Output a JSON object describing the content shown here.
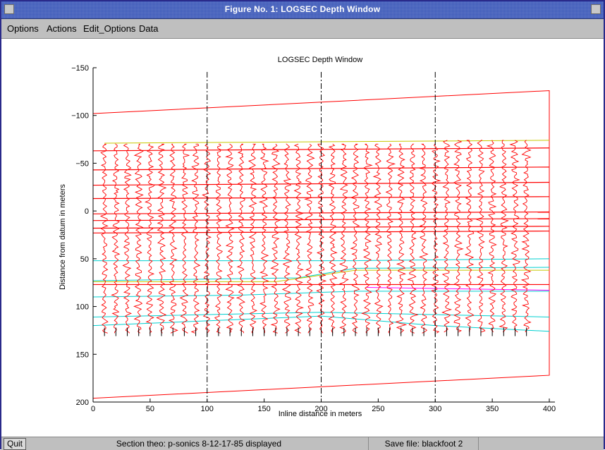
{
  "window": {
    "title": "Figure No. 1: LOGSEC Depth Window"
  },
  "menu": {
    "items": [
      "Options",
      "Actions",
      "Edit_Options",
      "Data"
    ]
  },
  "status": {
    "quit_label": "Quit",
    "section_text": "Section theo: p-sonics 8-12-17-85 displayed",
    "save_text": "Save file: blackfoot  2"
  },
  "colors": {
    "traces": "#ff0000",
    "frame": "#ff0000",
    "horizon_yellow": "#c8c800",
    "horizon_cyan": "#00d0d0",
    "horizon_magenta": "#ff00ff",
    "axes": "#000000"
  },
  "chart_data": {
    "type": "line",
    "title": "LOGSEC Depth Window",
    "xlabel": "Inline distance in meters",
    "ylabel": "Distance from datum in meters",
    "xlim": [
      0,
      400
    ],
    "ylim": [
      200,
      -150
    ],
    "x_ticks": [
      0,
      50,
      100,
      150,
      200,
      250,
      300,
      350,
      400
    ],
    "y_ticks": [
      -150,
      -100,
      -50,
      0,
      50,
      100,
      150,
      200
    ],
    "frame": {
      "top": [
        [
          0,
          -102
        ],
        [
          400,
          -126
        ]
      ],
      "bottom": [
        [
          0,
          196
        ],
        [
          400,
          172
        ]
      ],
      "left_x": 0,
      "right_x": 400
    },
    "well_lines_x": [
      100,
      200,
      300
    ],
    "traces": {
      "x_start": 10,
      "x_end": 380,
      "spacing": 10,
      "top_depth": -70,
      "bottom_depth": 128
    },
    "horizons": [
      {
        "color": "yellow",
        "points": [
          [
            10,
            -71
          ],
          [
            400,
            -74
          ]
        ]
      },
      {
        "color": "red",
        "points": [
          [
            0,
            -63
          ],
          [
            400,
            -66
          ]
        ]
      },
      {
        "color": "red",
        "points": [
          [
            0,
            -43
          ],
          [
            400,
            -46
          ]
        ]
      },
      {
        "color": "red",
        "points": [
          [
            0,
            -27
          ],
          [
            400,
            -30
          ]
        ]
      },
      {
        "color": "red",
        "points": [
          [
            0,
            -13
          ],
          [
            400,
            -15
          ]
        ]
      },
      {
        "color": "red",
        "points": [
          [
            0,
            3
          ],
          [
            400,
            1
          ]
        ]
      },
      {
        "color": "red",
        "points": [
          [
            0,
            10
          ],
          [
            400,
            8
          ]
        ]
      },
      {
        "color": "red",
        "points": [
          [
            0,
            18
          ],
          [
            400,
            16
          ]
        ]
      },
      {
        "color": "red",
        "points": [
          [
            0,
            23
          ],
          [
            400,
            21
          ]
        ]
      },
      {
        "color": "cyan",
        "points": [
          [
            0,
            52
          ],
          [
            230,
            52
          ],
          [
            400,
            50
          ]
        ]
      },
      {
        "color": "cyan",
        "points": [
          [
            0,
            73
          ],
          [
            180,
            70
          ],
          [
            230,
            60
          ],
          [
            400,
            59
          ]
        ]
      },
      {
        "color": "yellow",
        "points": [
          [
            0,
            74
          ],
          [
            160,
            74
          ],
          [
            230,
            62
          ],
          [
            400,
            62
          ]
        ]
      },
      {
        "color": "red",
        "points": [
          [
            0,
            77
          ],
          [
            400,
            77
          ]
        ]
      },
      {
        "color": "magenta",
        "points": [
          [
            240,
            80
          ],
          [
            400,
            83
          ]
        ]
      },
      {
        "color": "cyan",
        "points": [
          [
            0,
            90
          ],
          [
            130,
            88
          ],
          [
            230,
            84
          ],
          [
            400,
            84
          ]
        ]
      },
      {
        "color": "cyan",
        "points": [
          [
            0,
            111
          ],
          [
            200,
            106
          ],
          [
            400,
            111
          ]
        ]
      },
      {
        "color": "cyan",
        "points": [
          [
            0,
            120
          ],
          [
            200,
            110
          ],
          [
            300,
            120
          ],
          [
            400,
            126
          ]
        ]
      }
    ]
  }
}
